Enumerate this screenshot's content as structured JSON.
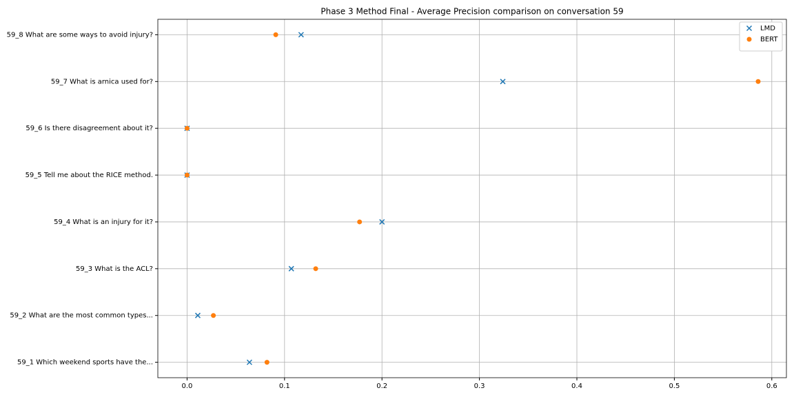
{
  "chart_data": {
    "type": "scatter",
    "title": "Phase 3 Method Final - Average Precision comparison on conversation 59",
    "categories": [
      "59_1 Which weekend sports have the...",
      "59_2 What are the most common types...",
      "59_3 What is the ACL?",
      "59_4 What is an injury for it?",
      "59_5 Tell me about the RICE method.",
      "59_6 Is there disagreement about it?",
      "59_7 What is arnica used for?",
      "59_8 What are some ways to avoid injury?"
    ],
    "series": [
      {
        "name": "LMD",
        "color": "#1f77b4",
        "marker": "x",
        "values": [
          0.064,
          0.011,
          0.107,
          0.2,
          0,
          0,
          0.324,
          0.117
        ]
      },
      {
        "name": "BERT",
        "color": "#ff7f0e",
        "marker": "o",
        "values": [
          0.082,
          0.027,
          0.132,
          0.177,
          0,
          0,
          0.586,
          0.091
        ]
      }
    ],
    "xlim": [
      -0.03,
      0.615
    ],
    "xticks": [
      {
        "value": 0,
        "label": "0.0"
      },
      0.1,
      0.2,
      0.3,
      0.4,
      0.5,
      0.6
    ],
    "grid": true,
    "legend": "upper right"
  }
}
